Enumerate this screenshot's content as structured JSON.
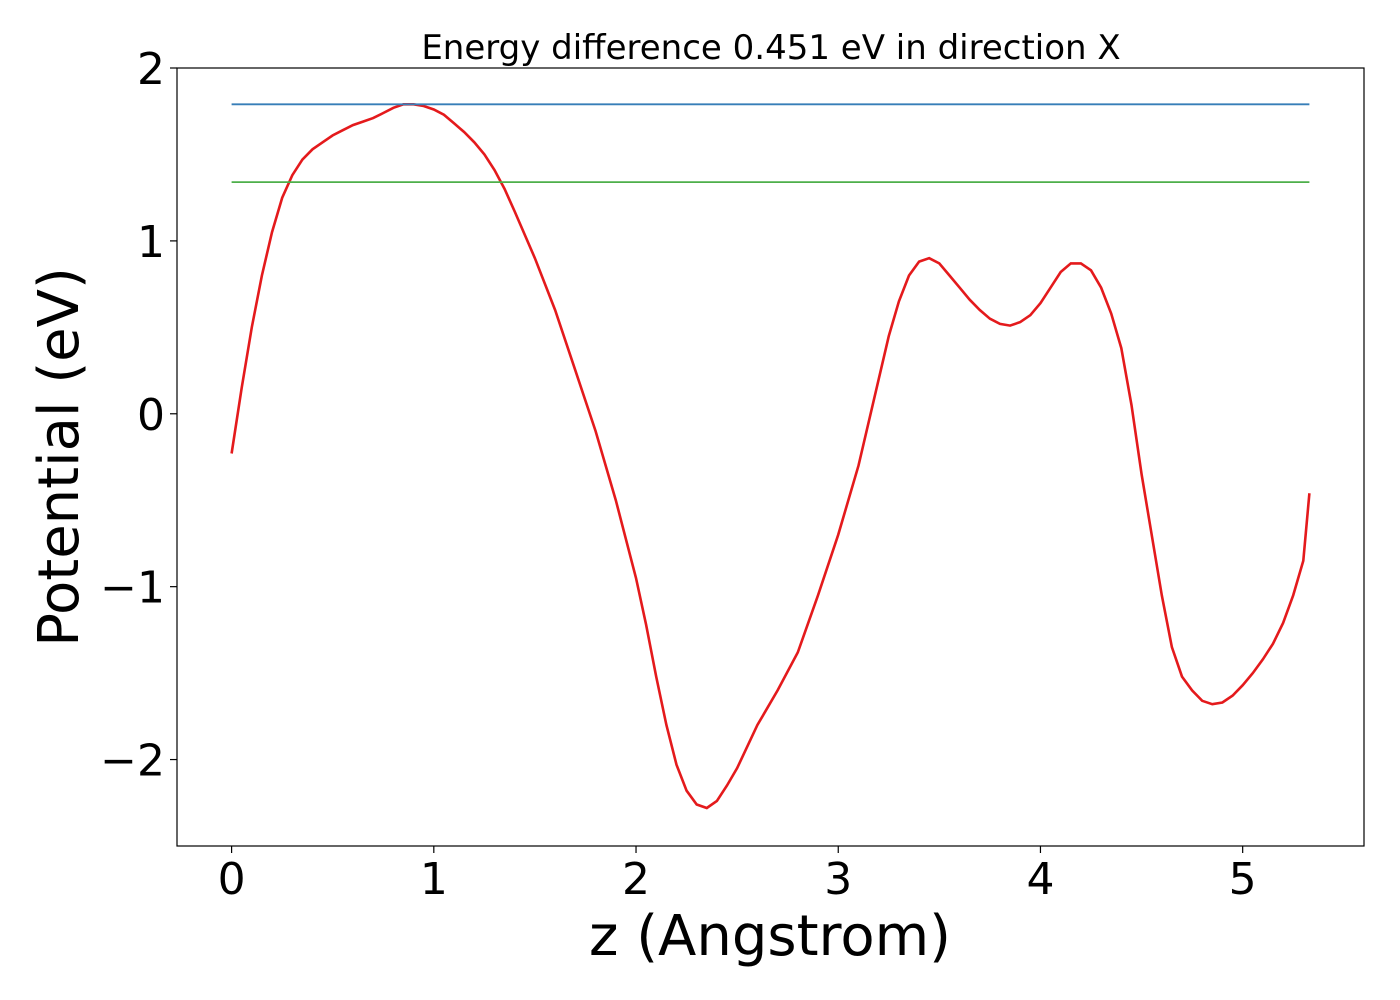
{
  "chart_data": {
    "type": "line",
    "title": "Energy difference 0.451 eV in direction X",
    "xlabel": "z (Angstrom)",
    "ylabel": "Potential (eV)",
    "xlim": [
      -0.27,
      5.6
    ],
    "ylim": [
      -2.5,
      2.0
    ],
    "xticks": [
      0,
      1,
      2,
      3,
      4,
      5
    ],
    "yticks": [
      -2,
      -1,
      0,
      1,
      2
    ],
    "xtick_labels": [
      "0",
      "1",
      "2",
      "3",
      "4",
      "5"
    ],
    "ytick_labels": [
      "−2",
      "−1",
      "0",
      "1",
      "2"
    ],
    "grid": false,
    "series": [
      {
        "color": "#e41a1c",
        "x": [
          0.0,
          0.05,
          0.1,
          0.15,
          0.2,
          0.25,
          0.3,
          0.35,
          0.4,
          0.45,
          0.5,
          0.55,
          0.6,
          0.65,
          0.7,
          0.75,
          0.8,
          0.85,
          0.9,
          0.95,
          1.0,
          1.05,
          1.1,
          1.15,
          1.2,
          1.25,
          1.3,
          1.35,
          1.4,
          1.5,
          1.6,
          1.7,
          1.8,
          1.9,
          2.0,
          2.05,
          2.1,
          2.15,
          2.2,
          2.25,
          2.3,
          2.35,
          2.4,
          2.45,
          2.5,
          2.6,
          2.7,
          2.8,
          2.9,
          3.0,
          3.1,
          3.2,
          3.25,
          3.3,
          3.35,
          3.4,
          3.45,
          3.5,
          3.55,
          3.6,
          3.65,
          3.7,
          3.75,
          3.8,
          3.85,
          3.9,
          3.95,
          4.0,
          4.05,
          4.1,
          4.15,
          4.2,
          4.25,
          4.3,
          4.35,
          4.4,
          4.45,
          4.5,
          4.55,
          4.6,
          4.65,
          4.7,
          4.75,
          4.8,
          4.85,
          4.9,
          4.95,
          5.0,
          5.05,
          5.1,
          5.15,
          5.2,
          5.25,
          5.3,
          5.33
        ],
        "y": [
          -0.23,
          0.15,
          0.5,
          0.8,
          1.05,
          1.25,
          1.38,
          1.47,
          1.53,
          1.57,
          1.61,
          1.64,
          1.67,
          1.69,
          1.71,
          1.74,
          1.77,
          1.79,
          1.79,
          1.78,
          1.76,
          1.73,
          1.68,
          1.63,
          1.57,
          1.5,
          1.41,
          1.3,
          1.17,
          0.9,
          0.6,
          0.25,
          -0.1,
          -0.5,
          -0.95,
          -1.22,
          -1.52,
          -1.8,
          -2.03,
          -2.18,
          -2.26,
          -2.28,
          -2.24,
          -2.15,
          -2.05,
          -1.8,
          -1.6,
          -1.38,
          -1.05,
          -0.7,
          -0.3,
          0.2,
          0.45,
          0.65,
          0.8,
          0.88,
          0.9,
          0.87,
          0.8,
          0.73,
          0.66,
          0.6,
          0.55,
          0.52,
          0.51,
          0.53,
          0.57,
          0.64,
          0.73,
          0.82,
          0.87,
          0.87,
          0.83,
          0.73,
          0.58,
          0.38,
          0.05,
          -0.35,
          -0.7,
          -1.05,
          -1.35,
          -1.52,
          -1.6,
          -1.66,
          -1.68,
          -1.67,
          -1.63,
          -1.57,
          -1.5,
          -1.42,
          -1.33,
          -1.21,
          -1.05,
          -0.85,
          -0.46
        ]
      },
      {
        "color": "#377eb8",
        "x": [
          0.0,
          5.33
        ],
        "y": [
          1.79,
          1.79
        ]
      },
      {
        "color": "#4daf4a",
        "x": [
          0.0,
          5.33
        ],
        "y": [
          1.34,
          1.34
        ]
      }
    ]
  }
}
